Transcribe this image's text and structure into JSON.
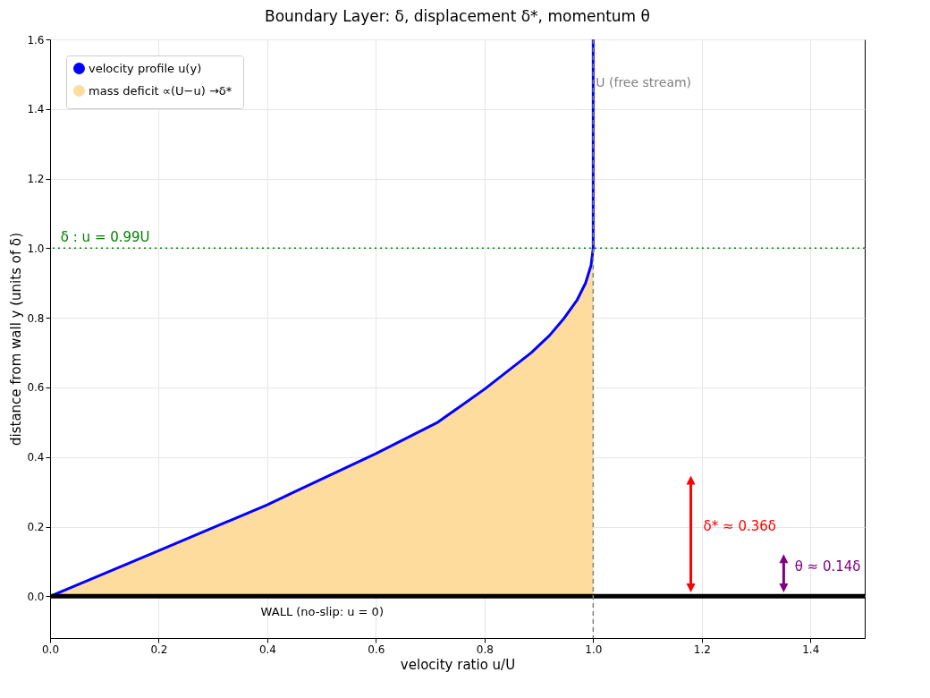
{
  "chart_data": {
    "type": "line",
    "title": "Boundary Layer: δ, displacement δ*, momentum θ",
    "xlabel": "velocity ratio  u/U",
    "ylabel": "distance from wall  y  (units of δ)",
    "series": [
      {
        "name": "velocity profile u(y)",
        "type": "line",
        "color": "#0000ff",
        "x": [
          0,
          0.2,
          0.4,
          0.45,
          0.6,
          0.714,
          0.8,
          0.886,
          0.92,
          0.947,
          0.97,
          0.986,
          0.996,
          1,
          1
        ],
        "values": [
          0,
          0.131,
          0.263,
          0.3,
          0.41,
          0.5,
          0.595,
          0.7,
          0.75,
          0.8,
          0.85,
          0.9,
          0.95,
          1,
          1.6
        ]
      },
      {
        "name": "mass deficit ∝(U−u)  →δ*",
        "type": "area",
        "color": "#fddc9e",
        "x": [
          0,
          0.2,
          0.4,
          0.45,
          0.6,
          0.714,
          0.8,
          0.886,
          0.92,
          0.947,
          0.97,
          0.986,
          0.996,
          1
        ],
        "values": [
          0,
          0.131,
          0.263,
          0.3,
          0.41,
          0.5,
          0.595,
          0.7,
          0.75,
          0.8,
          0.85,
          0.9,
          0.95,
          1
        ]
      }
    ],
    "xlim": [
      0,
      1.5
    ],
    "ylim": [
      -0.12,
      1.6
    ],
    "xticks": [
      {
        "value": 0,
        "label": "0.0"
      },
      0.2,
      0.4,
      0.6,
      0.8,
      {
        "value": 1,
        "label": "1.0"
      },
      1.2,
      1.4
    ],
    "yticks": [
      {
        "value": 0,
        "label": "0.0"
      },
      0.2,
      0.4,
      0.6,
      0.8,
      {
        "value": 1,
        "label": "1.0"
      },
      1.2,
      1.4,
      1.6
    ],
    "grid": true,
    "legend": "top left",
    "ref_lines": [
      {
        "axis": "y",
        "value": 0,
        "color": "#000000",
        "line_style": "solid"
      },
      {
        "axis": "y",
        "value": 1,
        "color": "#008000",
        "line_style": "dotted"
      },
      {
        "axis": "x",
        "value": 1,
        "label": "U (free stream)",
        "color": "#808080",
        "line_style": "dashed"
      }
    ],
    "annotations": [
      "WALL (no-slip: u = 0)",
      "δ* ≈ 0.36δ",
      "θ ≈ 0.14δ",
      "δ : u = 0.99U"
    ]
  }
}
